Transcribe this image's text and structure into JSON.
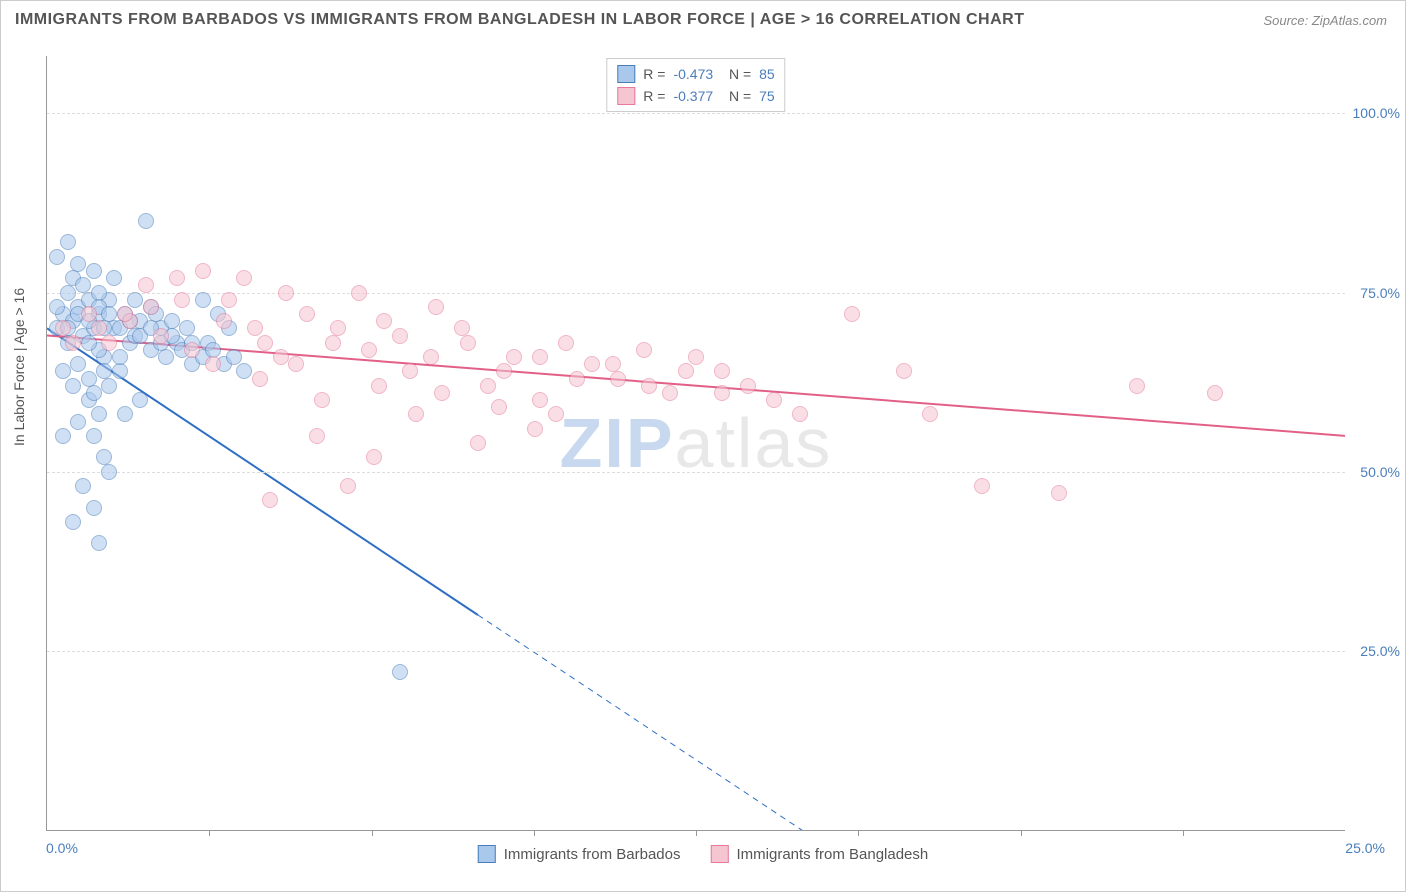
{
  "title": "IMMIGRANTS FROM BARBADOS VS IMMIGRANTS FROM BANGLADESH IN LABOR FORCE | AGE > 16 CORRELATION CHART",
  "source": "Source: ZipAtlas.com",
  "watermark": {
    "zip": "ZIP",
    "atlas": "atlas"
  },
  "chart": {
    "type": "scatter",
    "background_color": "#ffffff",
    "grid_color": "#dddddd",
    "axis_color": "#999999",
    "label_color": "#4a7ebb",
    "title_color": "#555555",
    "title_fontsize": 16,
    "label_fontsize": 14,
    "xlim": [
      0,
      25
    ],
    "ylim": [
      0,
      108
    ],
    "x_label_at_zero": "0.0%",
    "x_label_at_max": "25.0%",
    "y_ticks": [
      {
        "v": 25,
        "label": "25.0%"
      },
      {
        "v": 50,
        "label": "50.0%"
      },
      {
        "v": 75,
        "label": "75.0%"
      },
      {
        "v": 100,
        "label": "100.0%"
      }
    ],
    "x_tick_marks": [
      3.125,
      6.25,
      9.375,
      12.5,
      15.625,
      18.75,
      21.875
    ],
    "y_axis_title": "In Labor Force | Age > 16",
    "point_radius": 8,
    "point_opacity": 0.55,
    "line_width": 2
  },
  "series": [
    {
      "name": "Immigrants from Barbados",
      "fill": "#a9c8ec",
      "stroke": "#4a7ebb",
      "line_color": "#2e6fc4",
      "R": "-0.473",
      "N": "85",
      "regression": {
        "x1": 0,
        "y1": 70,
        "x2": 8.3,
        "y2": 30,
        "solid_until_x": 8.3,
        "dash_to_x": 16.2,
        "dash_to_y": -8
      },
      "points": [
        [
          0.2,
          70
        ],
        [
          0.3,
          72
        ],
        [
          0.4,
          68
        ],
        [
          0.5,
          71
        ],
        [
          0.6,
          73
        ],
        [
          0.7,
          69
        ],
        [
          0.8,
          74
        ],
        [
          0.9,
          70
        ],
        [
          1.0,
          72
        ],
        [
          1.1,
          66
        ],
        [
          0.4,
          75
        ],
        [
          0.5,
          77
        ],
        [
          0.7,
          76
        ],
        [
          0.9,
          78
        ],
        [
          1.2,
          74
        ],
        [
          0.6,
          65
        ],
        [
          0.8,
          63
        ],
        [
          1.0,
          67
        ],
        [
          1.3,
          70
        ],
        [
          1.5,
          72
        ],
        [
          0.3,
          64
        ],
        [
          0.5,
          62
        ],
        [
          0.8,
          60
        ],
        [
          1.0,
          58
        ],
        [
          1.2,
          62
        ],
        [
          1.4,
          64
        ],
        [
          1.6,
          68
        ],
        [
          1.8,
          71
        ],
        [
          2.0,
          73
        ],
        [
          2.2,
          70
        ],
        [
          0.2,
          80
        ],
        [
          0.4,
          82
        ],
        [
          0.6,
          79
        ],
        [
          1.0,
          75
        ],
        [
          1.3,
          77
        ],
        [
          1.7,
          74
        ],
        [
          2.1,
          72
        ],
        [
          2.5,
          68
        ],
        [
          0.9,
          55
        ],
        [
          1.1,
          52
        ],
        [
          0.7,
          48
        ],
        [
          0.9,
          45
        ],
        [
          1.2,
          50
        ],
        [
          1.5,
          58
        ],
        [
          1.8,
          60
        ],
        [
          2.3,
          66
        ],
        [
          2.8,
          65
        ],
        [
          3.0,
          74
        ],
        [
          3.3,
          72
        ],
        [
          3.5,
          70
        ],
        [
          1.9,
          85
        ],
        [
          1.0,
          40
        ],
        [
          0.5,
          43
        ],
        [
          0.3,
          55
        ],
        [
          0.6,
          57
        ],
        [
          0.9,
          61
        ],
        [
          1.1,
          64
        ],
        [
          1.4,
          66
        ],
        [
          1.7,
          69
        ],
        [
          2.0,
          67
        ],
        [
          2.4,
          71
        ],
        [
          2.7,
          70
        ],
        [
          3.1,
          68
        ],
        [
          0.2,
          73
        ],
        [
          0.4,
          70
        ],
        [
          0.6,
          72
        ],
        [
          0.8,
          71
        ],
        [
          1.0,
          73
        ],
        [
          1.2,
          72
        ],
        [
          1.4,
          70
        ],
        [
          1.6,
          71
        ],
        [
          1.8,
          69
        ],
        [
          2.0,
          70
        ],
        [
          2.2,
          68
        ],
        [
          2.4,
          69
        ],
        [
          2.6,
          67
        ],
        [
          2.8,
          68
        ],
        [
          3.0,
          66
        ],
        [
          3.2,
          67
        ],
        [
          3.4,
          65
        ],
        [
          3.6,
          66
        ],
        [
          3.8,
          64
        ],
        [
          6.8,
          22
        ],
        [
          0.8,
          68
        ],
        [
          1.1,
          70
        ]
      ]
    },
    {
      "name": "Immigrants from Bangladesh",
      "fill": "#f5c5d1",
      "stroke": "#e67a9a",
      "line_color": "#e26088",
      "R": "-0.377",
      "N": "75",
      "regression": {
        "x1": 0,
        "y1": 69,
        "x2": 25,
        "y2": 55,
        "solid_until_x": 25
      },
      "points": [
        [
          0.3,
          70
        ],
        [
          0.8,
          72
        ],
        [
          1.2,
          68
        ],
        [
          1.6,
          71
        ],
        [
          2.0,
          73
        ],
        [
          2.5,
          77
        ],
        [
          3.0,
          78
        ],
        [
          3.5,
          74
        ],
        [
          4.0,
          70
        ],
        [
          4.5,
          66
        ],
        [
          5.0,
          72
        ],
        [
          5.5,
          68
        ],
        [
          6.0,
          75
        ],
        [
          6.5,
          71
        ],
        [
          7.0,
          64
        ],
        [
          7.5,
          73
        ],
        [
          8.0,
          70
        ],
        [
          8.5,
          62
        ],
        [
          9.0,
          66
        ],
        [
          9.5,
          60
        ],
        [
          10.0,
          68
        ],
        [
          10.5,
          65
        ],
        [
          11.0,
          63
        ],
        [
          11.5,
          67
        ],
        [
          12.0,
          61
        ],
        [
          12.5,
          66
        ],
        [
          13.0,
          64
        ],
        [
          13.5,
          62
        ],
        [
          14.0,
          60
        ],
        [
          5.2,
          55
        ],
        [
          6.3,
          52
        ],
        [
          7.1,
          58
        ],
        [
          8.3,
          54
        ],
        [
          9.4,
          56
        ],
        [
          4.3,
          46
        ],
        [
          5.8,
          48
        ],
        [
          3.2,
          65
        ],
        [
          4.1,
          63
        ],
        [
          5.3,
          60
        ],
        [
          6.4,
          62
        ],
        [
          7.6,
          61
        ],
        [
          8.7,
          59
        ],
        [
          9.8,
          58
        ],
        [
          15.5,
          72
        ],
        [
          16.5,
          64
        ],
        [
          18.0,
          48
        ],
        [
          19.5,
          47
        ],
        [
          21.0,
          62
        ],
        [
          22.5,
          61
        ],
        [
          17.0,
          58
        ],
        [
          0.5,
          68
        ],
        [
          1.0,
          70
        ],
        [
          1.5,
          72
        ],
        [
          2.2,
          69
        ],
        [
          2.8,
          67
        ],
        [
          3.4,
          71
        ],
        [
          4.2,
          68
        ],
        [
          4.8,
          65
        ],
        [
          5.6,
          70
        ],
        [
          6.2,
          67
        ],
        [
          6.8,
          69
        ],
        [
          7.4,
          66
        ],
        [
          8.1,
          68
        ],
        [
          8.8,
          64
        ],
        [
          9.5,
          66
        ],
        [
          10.2,
          63
        ],
        [
          10.9,
          65
        ],
        [
          11.6,
          62
        ],
        [
          12.3,
          64
        ],
        [
          13.0,
          61
        ],
        [
          3.8,
          77
        ],
        [
          4.6,
          75
        ],
        [
          2.6,
          74
        ],
        [
          1.9,
          76
        ],
        [
          14.5,
          58
        ]
      ]
    }
  ],
  "legend_bottom": [
    {
      "label": "Immigrants from Barbados"
    },
    {
      "label": "Immigrants from Bangladesh"
    }
  ]
}
